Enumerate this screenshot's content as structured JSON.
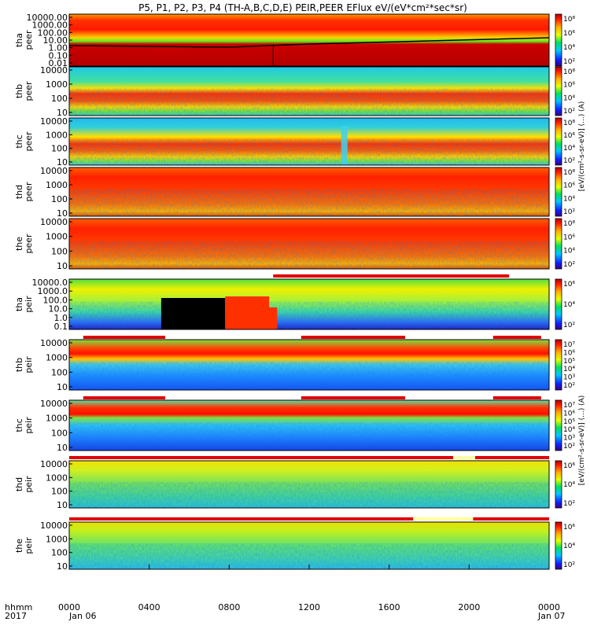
{
  "chart_data": {
    "type": "heatmap",
    "title": "P5, P1, P2, P3, P4 (TH-A,B,C,D,E) PEIR,PEER EFlux eV/(eV*cm²*sec*sr)",
    "x_axis": {
      "label_line1": "hhmm",
      "label_line2": "2017",
      "ticks": [
        "0000",
        "0400",
        "0800",
        "1200",
        "1600",
        "2000",
        "0000"
      ],
      "tick_values_hours": [
        0,
        4,
        8,
        12,
        16,
        20,
        24
      ],
      "date_start": "Jan 06",
      "date_end": "Jan 07"
    },
    "colorbar_label_peer": "[eV/(cm²-s-sr-eV)] (...) (A)",
    "colorbar_label_peir": "[eV/(cm²-s-sr-eV)] (...) (A)",
    "panels": [
      {
        "probe": "tha",
        "species": "peer",
        "label": "tha peer",
        "yticks": [
          "10000.00",
          "1000.00",
          "100.00",
          "10.00",
          "1.00",
          "0.10",
          "0.01"
        ],
        "cbar_ticks": [
          "10⁸",
          "10⁶",
          "10⁴",
          "10²"
        ]
      },
      {
        "probe": "thb",
        "species": "peer",
        "label": "thb peer",
        "yticks": [
          "10000",
          "1000",
          "100",
          "10"
        ],
        "cbar_ticks": [
          "10⁸",
          "10⁶",
          "10⁴",
          "10²"
        ]
      },
      {
        "probe": "thc",
        "species": "peer",
        "label": "thc peer",
        "yticks": [
          "10000",
          "1000",
          "100",
          "10"
        ],
        "cbar_ticks": [
          "10⁸",
          "10⁶",
          "10⁴",
          "10²"
        ]
      },
      {
        "probe": "thd",
        "species": "peer",
        "label": "thd peer",
        "yticks": [
          "10000",
          "1000",
          "100",
          "10"
        ],
        "cbar_ticks": [
          "10⁸",
          "10⁶",
          "10⁴",
          "10²"
        ]
      },
      {
        "probe": "the",
        "species": "peer",
        "label": "the peer",
        "yticks": [
          "10000",
          "1000",
          "100",
          "10"
        ],
        "cbar_ticks": [
          "10⁸",
          "10⁶",
          "10⁴",
          "10²"
        ]
      },
      {
        "probe": "tha",
        "species": "peir",
        "label": "tha peir",
        "yticks": [
          "10000.0",
          "1000.0",
          "100.0",
          "10.0",
          "1.0",
          "0.1"
        ],
        "cbar_ticks": [
          "10⁶",
          "10⁴",
          "10²"
        ]
      },
      {
        "probe": "thb",
        "species": "peir",
        "label": "thb peir",
        "yticks": [
          "10000",
          "1000",
          "100",
          "10"
        ],
        "cbar_ticks": [
          "10⁷",
          "10⁶",
          "10⁵",
          "10⁴",
          "10³",
          "10²"
        ]
      },
      {
        "probe": "thc",
        "species": "peir",
        "label": "thc peir",
        "yticks": [
          "10000",
          "1000",
          "100",
          "10"
        ],
        "cbar_ticks": [
          "10⁷",
          "10⁶",
          "10⁵",
          "10⁴",
          "10³",
          "10²"
        ]
      },
      {
        "probe": "thd",
        "species": "peir",
        "label": "thd peir",
        "yticks": [
          "10000",
          "1000",
          "100",
          "10"
        ],
        "cbar_ticks": [
          "10⁶",
          "10⁴",
          "10²"
        ]
      },
      {
        "probe": "the",
        "species": "peir",
        "label": "the peir",
        "yticks": [
          "10000",
          "1000",
          "100",
          "10"
        ],
        "cbar_ticks": [
          "10⁶",
          "10⁴",
          "10²"
        ]
      }
    ]
  }
}
